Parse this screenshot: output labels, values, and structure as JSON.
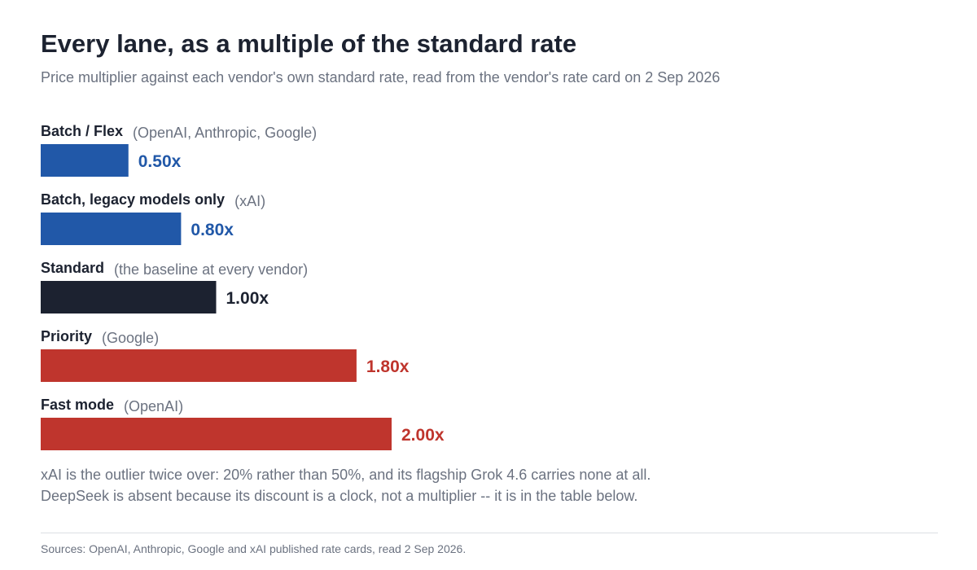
{
  "chart_data": {
    "type": "bar",
    "orientation": "horizontal",
    "title": "Every lane, as a multiple of the standard rate",
    "subtitle": "Price multiplier against each vendor's own standard rate, read from the vendor's rate card on 2 Sep 2026",
    "categories": [
      "Batch / Flex",
      "Batch, legacy models only",
      "Standard",
      "Priority",
      "Fast mode"
    ],
    "notes": [
      "(OpenAI, Anthropic, Google)",
      "(xAI)",
      "(the baseline at every vendor)",
      "(Google)",
      "(OpenAI)"
    ],
    "values": [
      0.5,
      0.8,
      1.0,
      1.8,
      2.0
    ],
    "value_labels": [
      "0.50x",
      "0.80x",
      "1.00x",
      "1.80x",
      "2.00x"
    ],
    "colors": [
      "#2158a8",
      "#2158a8",
      "#1c2230",
      "#bf352d",
      "#bf352d"
    ],
    "xlim": [
      0,
      2.0
    ],
    "grid": false,
    "legend": "none"
  },
  "footnotes": [
    "xAI is the outlier twice over: 20% rather than 50%, and its flagship Grok 4.6 carries none at all.",
    "DeepSeek is absent because its discount is a clock, not a multiplier -- it is in the table below."
  ],
  "source": "Sources: OpenAI, Anthropic, Google and xAI published rate cards, read 2 Sep 2026."
}
